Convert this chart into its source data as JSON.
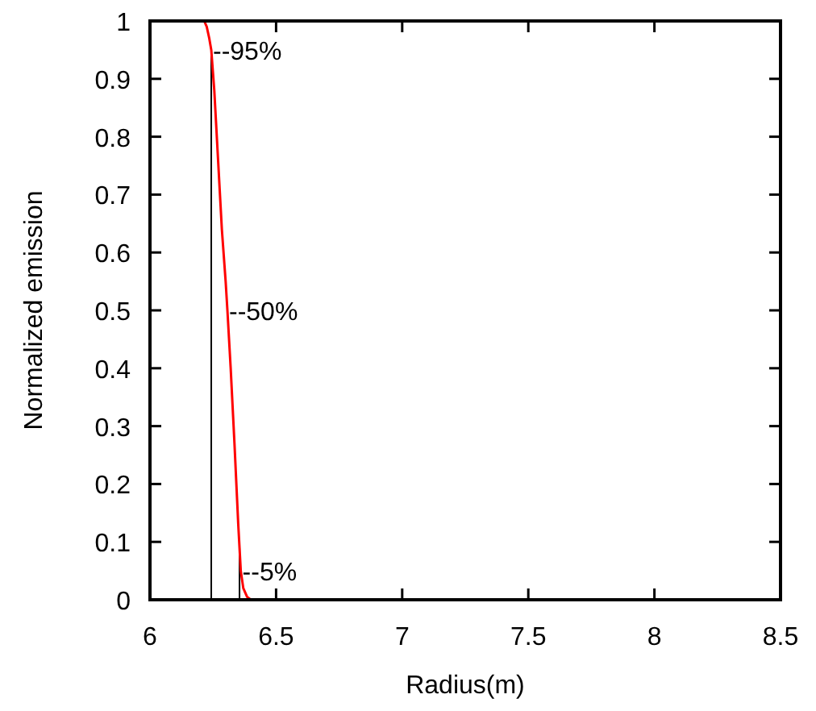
{
  "chart_data": {
    "type": "line",
    "xlabel": "Radius(m)",
    "ylabel": "Normalized emission",
    "x": [
      6.215,
      6.225,
      6.235,
      6.243,
      6.255,
      6.27,
      6.285,
      6.3,
      6.307,
      6.32,
      6.335,
      6.35,
      6.36,
      6.37,
      6.385,
      6.4
    ],
    "series": [
      {
        "color": "#ff0000",
        "values": [
          1,
          0.99,
          0.97,
          0.95,
          0.88,
          0.76,
          0.64,
          0.55,
          0.5,
          0.4,
          0.27,
          0.13,
          0.05,
          0.02,
          0.005,
          0
        ]
      }
    ],
    "xlim": [
      6,
      8.5
    ],
    "xticks": [
      6,
      6.5,
      7,
      7.5,
      8,
      8.5
    ],
    "ylim": [
      0,
      1
    ],
    "yticks": [
      0,
      0.1,
      0.2,
      0.3,
      0.4,
      0.5,
      0.6,
      0.7,
      0.8,
      0.9,
      1
    ],
    "ref_lines": [
      {
        "axis": "x",
        "value": 6.243,
        "color": "#000000"
      },
      {
        "axis": "x",
        "value": 6.355,
        "color": "#000000"
      }
    ],
    "annotations": [
      {
        "text": "--95%",
        "x": 6.243,
        "y": 0.95
      },
      {
        "text": "--50%",
        "x": 6.307,
        "y": 0.5
      },
      {
        "text": "--5%",
        "x": 6.36,
        "y": 0.05
      }
    ],
    "grid": false
  }
}
